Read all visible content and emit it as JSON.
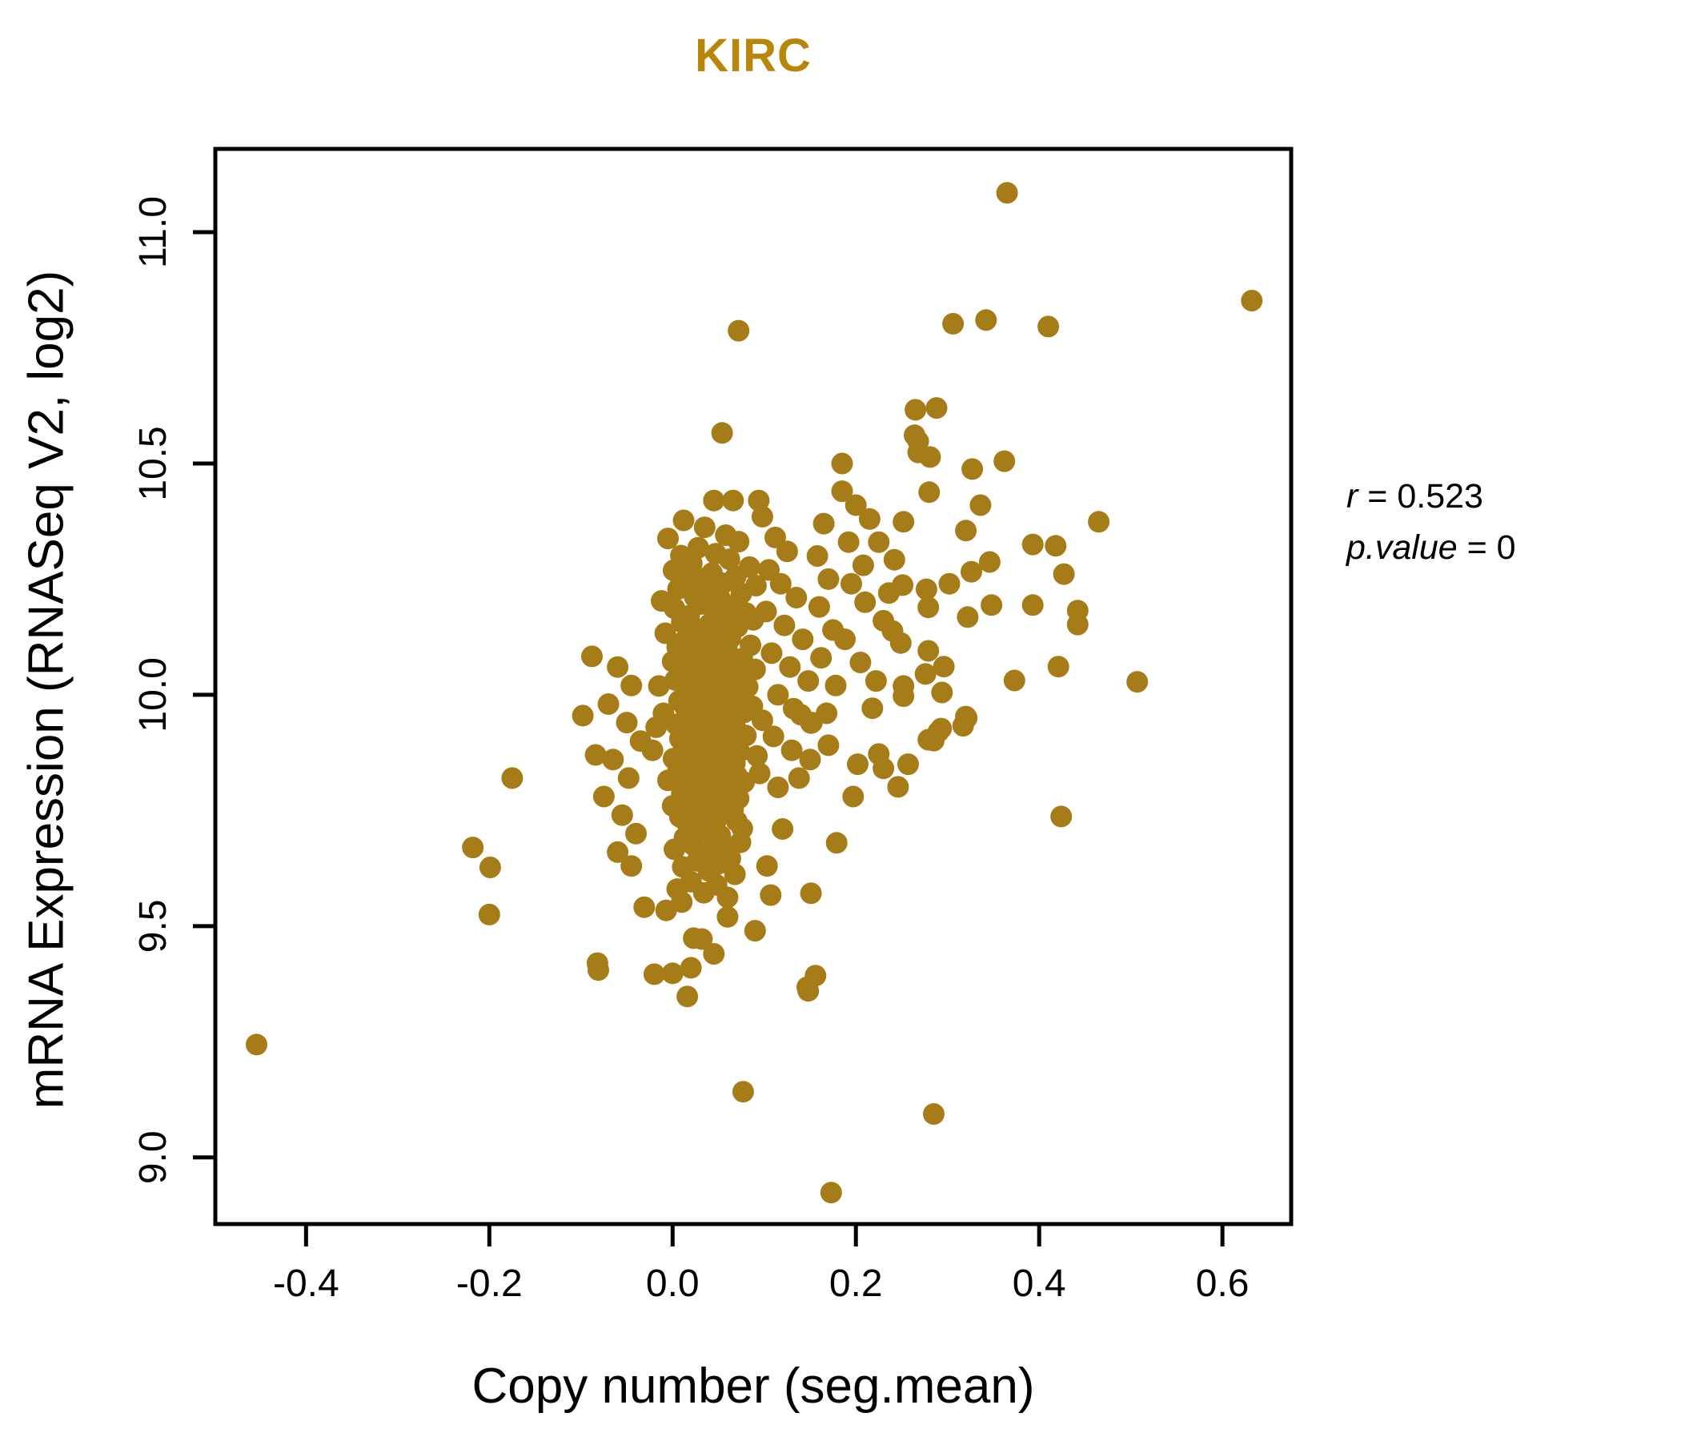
{
  "chart_data": {
    "type": "scatter",
    "title": "KIRC",
    "title_color": "#B8860B",
    "xlabel": "Copy number (seg.mean)",
    "ylabel": "mRNA Expression (RNASeq V2, log2)",
    "x_ticks": [
      "-0.4",
      "-0.2",
      "0.0",
      "0.2",
      "0.4",
      "0.6"
    ],
    "y_ticks": [
      "9.0",
      "9.5",
      "10.0",
      "10.5",
      "11.0"
    ],
    "xlim": [
      -0.499,
      0.675
    ],
    "ylim": [
      8.856,
      11.18
    ],
    "grid": false,
    "legend": "none",
    "marker": {
      "shape": "circle",
      "radius_px": 13.5,
      "color": "#A67C18"
    },
    "annotation": {
      "line1_var": "r",
      "line1_rest": " = 0.523",
      "line2_var": "p.value",
      "line2_rest": " = 0"
    },
    "points": [
      [
        -0.454,
        9.244
      ],
      [
        0.365,
        11.085
      ],
      [
        0.632,
        10.852
      ],
      [
        0.306,
        10.802
      ],
      [
        0.342,
        10.81
      ],
      [
        0.41,
        10.796
      ],
      [
        0.072,
        10.787
      ],
      [
        0.288,
        10.62
      ],
      [
        0.268,
        10.524
      ],
      [
        0.054,
        10.566
      ],
      [
        0.185,
        10.5
      ],
      [
        0.265,
        10.616
      ],
      [
        0.264,
        10.561
      ],
      [
        0.268,
        10.548
      ],
      [
        0.281,
        10.514
      ],
      [
        0.327,
        10.488
      ],
      [
        0.362,
        10.505
      ],
      [
        0.28,
        10.438
      ],
      [
        0.336,
        10.41
      ],
      [
        0.252,
        10.374
      ],
      [
        0.32,
        10.355
      ],
      [
        0.465,
        10.374
      ],
      [
        0.393,
        10.325
      ],
      [
        0.418,
        10.322
      ],
      [
        0.242,
        10.292
      ],
      [
        0.346,
        10.287
      ],
      [
        0.326,
        10.266
      ],
      [
        0.427,
        10.261
      ],
      [
        0.251,
        10.237
      ],
      [
        0.277,
        10.228
      ],
      [
        0.302,
        10.24
      ],
      [
        0.236,
        10.22
      ],
      [
        0.279,
        10.189
      ],
      [
        0.348,
        10.194
      ],
      [
        0.393,
        10.194
      ],
      [
        0.442,
        10.182
      ],
      [
        0.322,
        10.168
      ],
      [
        0.442,
        10.152
      ],
      [
        0.24,
        10.138
      ],
      [
        0.249,
        10.112
      ],
      [
        0.279,
        10.095
      ],
      [
        0.296,
        10.061
      ],
      [
        0.276,
        10.045
      ],
      [
        0.252,
        10.019
      ],
      [
        0.252,
        9.997
      ],
      [
        0.294,
        10.005
      ],
      [
        0.421,
        10.061
      ],
      [
        0.507,
        10.028
      ],
      [
        0.373,
        10.031
      ],
      [
        0.321,
        9.95
      ],
      [
        0.29,
        9.92
      ],
      [
        0.279,
        9.903
      ],
      [
        0.424,
        9.737
      ],
      [
        0.32,
        9.953
      ],
      [
        0.317,
        9.933
      ],
      [
        0.293,
        9.927
      ],
      [
        0.285,
        9.901
      ],
      [
        0.14,
        9.957
      ],
      [
        0.151,
        9.939
      ],
      [
        0.218,
        9.971
      ],
      [
        0.17,
        9.891
      ],
      [
        0.202,
        9.85
      ],
      [
        0.225,
        9.872
      ],
      [
        0.23,
        9.841
      ],
      [
        0.257,
        9.85
      ],
      [
        0.246,
        9.801
      ],
      [
        0.197,
        9.78
      ],
      [
        0.179,
        9.68
      ],
      [
        0.151,
        9.571
      ],
      [
        0.156,
        9.393
      ],
      [
        0.148,
        9.36
      ],
      [
        0.077,
        9.142
      ],
      [
        0.285,
        9.094
      ],
      [
        0.173,
        8.924
      ],
      [
        0.107,
        9.567
      ],
      [
        -0.031,
        9.541
      ],
      [
        -0.007,
        9.534
      ],
      [
        0.01,
        9.552
      ],
      [
        0.023,
        9.474
      ],
      [
        0.032,
        9.472
      ],
      [
        -0.081,
        9.405
      ],
      [
        -0.02,
        9.396
      ],
      [
        0.0,
        9.398
      ],
      [
        0.02,
        9.41
      ],
      [
        0.016,
        9.348
      ],
      [
        0.147,
        9.368
      ],
      [
        -0.218,
        9.67
      ],
      [
        -0.199,
        9.627
      ],
      [
        -0.2,
        9.525
      ],
      [
        -0.175,
        9.82
      ],
      [
        -0.088,
        10.083
      ],
      [
        -0.098,
        9.955
      ],
      [
        -0.084,
        9.87
      ],
      [
        -0.082,
        9.42
      ],
      [
        0.045,
        10.42
      ],
      [
        0.066,
        10.42
      ],
      [
        0.094,
        10.42
      ],
      [
        0.012,
        10.377
      ],
      [
        0.035,
        10.362
      ],
      [
        0.058,
        10.345
      ],
      [
        -0.005,
        10.338
      ],
      [
        0.072,
        10.331
      ],
      [
        0.028,
        10.318
      ],
      [
        0.047,
        10.305
      ],
      [
        0.009,
        10.301
      ],
      [
        0.062,
        10.293
      ],
      [
        0.021,
        10.284
      ],
      [
        0.084,
        10.276
      ],
      [
        0.001,
        10.269
      ],
      [
        0.043,
        10.263
      ],
      [
        0.069,
        10.256
      ],
      [
        0.033,
        10.251
      ],
      [
        0.015,
        10.246
      ],
      [
        0.055,
        10.241
      ],
      [
        0.091,
        10.236
      ],
      [
        0.006,
        10.229
      ],
      [
        0.038,
        10.224
      ],
      [
        0.075,
        10.219
      ],
      [
        0.024,
        10.212
      ],
      [
        0.052,
        10.207
      ],
      [
        -0.012,
        10.203
      ],
      [
        0.03,
        10.196
      ],
      [
        0.066,
        10.192
      ],
      [
        0.002,
        10.187
      ],
      [
        0.045,
        10.182
      ],
      [
        0.08,
        10.177
      ],
      [
        0.018,
        10.171
      ],
      [
        0.058,
        10.166
      ],
      [
        0.088,
        10.162
      ],
      [
        0.01,
        10.157
      ],
      [
        0.04,
        10.152
      ],
      [
        0.071,
        10.147
      ],
      [
        0.025,
        10.143
      ],
      [
        0.054,
        10.138
      ],
      [
        -0.008,
        10.133
      ],
      [
        0.036,
        10.128
      ],
      [
        0.063,
        10.122
      ],
      [
        0.013,
        10.117
      ],
      [
        0.047,
        10.112
      ],
      [
        0.085,
        10.107
      ],
      [
        0.005,
        10.103
      ],
      [
        0.029,
        10.097
      ],
      [
        0.06,
        10.093
      ],
      [
        0.016,
        10.088
      ],
      [
        0.044,
        10.083
      ],
      [
        0.076,
        10.078
      ],
      [
        0.0,
        10.072
      ],
      [
        0.034,
        10.067
      ],
      [
        0.067,
        10.062
      ],
      [
        0.022,
        10.057
      ],
      [
        0.05,
        10.052
      ],
      [
        0.09,
        10.055
      ],
      [
        0.011,
        10.046
      ],
      [
        0.041,
        10.042
      ],
      [
        0.07,
        10.037
      ],
      [
        0.003,
        10.032
      ],
      [
        0.031,
        10.027
      ],
      [
        0.059,
        10.022
      ],
      [
        0.082,
        10.017
      ],
      [
        0.019,
        10.012
      ],
      [
        0.048,
        10.007
      ],
      [
        0.073,
        10.002
      ],
      [
        -0.015,
        10.019
      ],
      [
        0.026,
        9.996
      ],
      [
        0.056,
        9.992
      ],
      [
        0.007,
        9.987
      ],
      [
        0.037,
        9.982
      ],
      [
        0.065,
        9.977
      ],
      [
        0.014,
        9.972
      ],
      [
        0.046,
        9.967
      ],
      [
        0.078,
        9.962
      ],
      [
        0.023,
        9.957
      ],
      [
        0.053,
        9.952
      ],
      [
        -0.01,
        9.96
      ],
      [
        0.087,
        9.975
      ],
      [
        0.032,
        9.946
      ],
      [
        0.061,
        9.941
      ],
      [
        0.004,
        9.936
      ],
      [
        0.042,
        9.931
      ],
      [
        0.069,
        9.927
      ],
      [
        0.017,
        9.922
      ],
      [
        0.049,
        9.917
      ],
      [
        0.08,
        9.912
      ],
      [
        0.027,
        9.907
      ],
      [
        0.057,
        9.902
      ],
      [
        -0.018,
        9.93
      ],
      [
        0.008,
        9.905
      ],
      [
        0.035,
        9.896
      ],
      [
        0.064,
        9.892
      ],
      [
        0.012,
        9.887
      ],
      [
        0.044,
        9.882
      ],
      [
        0.073,
        9.877
      ],
      [
        0.021,
        9.872
      ],
      [
        0.051,
        9.867
      ],
      [
        0.001,
        9.862
      ],
      [
        0.038,
        9.857
      ],
      [
        0.068,
        9.852
      ],
      [
        -0.022,
        9.88
      ],
      [
        0.092,
        9.868
      ],
      [
        0.025,
        9.846
      ],
      [
        0.055,
        9.841
      ],
      [
        0.006,
        9.836
      ],
      [
        0.04,
        9.831
      ],
      [
        0.07,
        9.826
      ],
      [
        0.015,
        9.821
      ],
      [
        0.047,
        9.816
      ],
      [
        0.078,
        9.811
      ],
      [
        0.028,
        9.806
      ],
      [
        -0.005,
        9.815
      ],
      [
        0.06,
        9.803
      ],
      [
        0.033,
        9.796
      ],
      [
        0.062,
        9.791
      ],
      [
        0.01,
        9.786
      ],
      [
        0.043,
        9.781
      ],
      [
        0.072,
        9.776
      ],
      [
        0.019,
        9.771
      ],
      [
        0.05,
        9.766
      ],
      [
        0.0,
        9.76
      ],
      [
        0.036,
        9.756
      ],
      [
        0.066,
        9.752
      ],
      [
        0.024,
        9.746
      ],
      [
        0.054,
        9.741
      ],
      [
        0.008,
        9.736
      ],
      [
        0.041,
        9.731
      ],
      [
        0.07,
        9.727
      ],
      [
        0.016,
        9.722
      ],
      [
        0.046,
        9.716
      ],
      [
        0.076,
        9.711
      ],
      [
        0.029,
        9.706
      ],
      [
        0.052,
        9.696
      ],
      [
        0.013,
        9.691
      ],
      [
        0.045,
        9.686
      ],
      [
        0.074,
        9.681
      ],
      [
        0.022,
        9.676
      ],
      [
        0.058,
        9.671
      ],
      [
        0.002,
        9.666
      ],
      [
        0.037,
        9.659
      ],
      [
        0.063,
        9.646
      ],
      [
        0.027,
        9.641
      ],
      [
        0.049,
        9.634
      ],
      [
        0.011,
        9.628
      ],
      [
        0.039,
        9.62
      ],
      [
        0.068,
        9.612
      ],
      [
        0.02,
        9.596
      ],
      [
        0.048,
        9.589
      ],
      [
        0.005,
        9.58
      ],
      [
        0.034,
        9.572
      ],
      [
        0.06,
        9.562
      ],
      [
        0.098,
        10.385
      ],
      [
        0.112,
        10.34
      ],
      [
        0.125,
        10.31
      ],
      [
        0.105,
        10.27
      ],
      [
        0.118,
        10.24
      ],
      [
        0.135,
        10.21
      ],
      [
        0.102,
        10.18
      ],
      [
        0.122,
        10.15
      ],
      [
        0.142,
        10.12
      ],
      [
        0.108,
        10.09
      ],
      [
        0.128,
        10.06
      ],
      [
        0.148,
        10.03
      ],
      [
        0.115,
        10.0
      ],
      [
        0.132,
        9.97
      ],
      [
        0.152,
        9.94
      ],
      [
        0.098,
        9.945
      ],
      [
        0.11,
        9.91
      ],
      [
        0.13,
        9.88
      ],
      [
        0.15,
        9.86
      ],
      [
        0.165,
        10.37
      ],
      [
        0.158,
        10.3
      ],
      [
        0.17,
        10.25
      ],
      [
        0.16,
        10.19
      ],
      [
        0.175,
        10.14
      ],
      [
        0.162,
        10.08
      ],
      [
        0.178,
        10.02
      ],
      [
        0.168,
        9.96
      ],
      [
        0.095,
        9.83
      ],
      [
        0.115,
        9.8
      ],
      [
        0.138,
        9.82
      ],
      [
        0.185,
        10.44
      ],
      [
        0.2,
        10.41
      ],
      [
        0.215,
        10.38
      ],
      [
        0.192,
        10.33
      ],
      [
        0.208,
        10.28
      ],
      [
        0.225,
        10.33
      ],
      [
        0.195,
        10.24
      ],
      [
        0.21,
        10.2
      ],
      [
        0.23,
        10.16
      ],
      [
        0.188,
        10.12
      ],
      [
        0.205,
        10.07
      ],
      [
        0.222,
        10.03
      ],
      [
        -0.06,
        10.06
      ],
      [
        -0.045,
        10.02
      ],
      [
        -0.07,
        9.98
      ],
      [
        -0.05,
        9.94
      ],
      [
        -0.035,
        9.9
      ],
      [
        -0.065,
        9.86
      ],
      [
        -0.048,
        9.82
      ],
      [
        -0.075,
        9.78
      ],
      [
        -0.055,
        9.74
      ],
      [
        -0.04,
        9.7
      ],
      [
        -0.06,
        9.66
      ],
      [
        -0.045,
        9.63
      ],
      [
        0.06,
        9.52
      ],
      [
        0.09,
        9.49
      ],
      [
        0.045,
        9.44
      ],
      [
        0.12,
        9.71
      ],
      [
        0.103,
        9.63
      ]
    ]
  }
}
